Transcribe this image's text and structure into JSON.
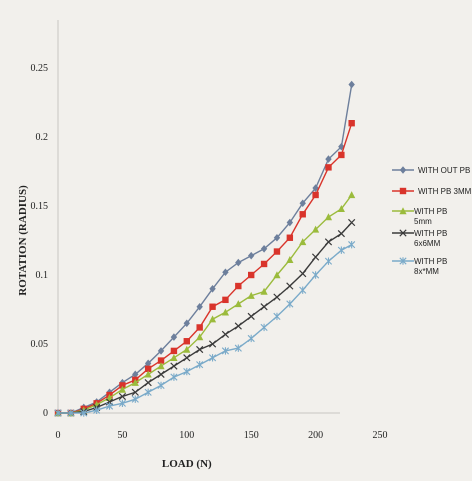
{
  "chart_data": {
    "type": "line",
    "title": "",
    "xlabel": "LOAD (N)",
    "ylabel": "ROTATION (RADIUS)",
    "xlim": [
      0,
      250
    ],
    "ylim": [
      0,
      0.25
    ],
    "x_ticks": [
      "0",
      "50",
      "100",
      "150",
      "200",
      "250"
    ],
    "y_ticks": [
      "0",
      "0.05",
      "0.1",
      "0.15",
      "0.2",
      "0.25"
    ],
    "grid": false,
    "legend_position": "right",
    "series": [
      {
        "name": "WITH OUT PB",
        "color": "#6d7f9c",
        "marker": "diamond",
        "x": [
          0,
          10,
          20,
          30,
          40,
          50,
          60,
          70,
          80,
          90,
          100,
          110,
          120,
          130,
          140,
          150,
          160,
          170,
          180,
          190,
          200,
          210,
          220,
          228
        ],
        "y": [
          0,
          0,
          0.004,
          0.008,
          0.015,
          0.022,
          0.028,
          0.036,
          0.045,
          0.055,
          0.065,
          0.077,
          0.09,
          0.102,
          0.109,
          0.114,
          0.119,
          0.127,
          0.138,
          0.152,
          0.163,
          0.184,
          0.193,
          0.238
        ]
      },
      {
        "name": "WITH PB 3MM",
        "color": "#d9342b",
        "marker": "square",
        "x": [
          0,
          10,
          20,
          30,
          40,
          50,
          60,
          70,
          80,
          90,
          100,
          110,
          120,
          130,
          140,
          150,
          160,
          170,
          180,
          190,
          200,
          210,
          220,
          228
        ],
        "y": [
          0,
          0,
          0.003,
          0.007,
          0.013,
          0.02,
          0.024,
          0.032,
          0.038,
          0.045,
          0.052,
          0.062,
          0.077,
          0.082,
          0.092,
          0.1,
          0.108,
          0.117,
          0.127,
          0.144,
          0.158,
          0.178,
          0.187,
          0.21
        ]
      },
      {
        "name": "WITH  PB 5mm",
        "color": "#9bbb3c",
        "marker": "triangle",
        "x": [
          0,
          10,
          20,
          30,
          40,
          50,
          60,
          70,
          80,
          90,
          100,
          110,
          120,
          130,
          140,
          150,
          160,
          170,
          180,
          190,
          200,
          210,
          220,
          228
        ],
        "y": [
          0,
          0,
          0.002,
          0.006,
          0.011,
          0.017,
          0.022,
          0.028,
          0.034,
          0.04,
          0.046,
          0.055,
          0.068,
          0.073,
          0.079,
          0.085,
          0.088,
          0.1,
          0.111,
          0.124,
          0.133,
          0.142,
          0.148,
          0.158
        ]
      },
      {
        "name": "WITH PB 6x6MM",
        "color": "#3a3a3a",
        "marker": "x",
        "x": [
          0,
          10,
          20,
          30,
          40,
          50,
          60,
          70,
          80,
          90,
          100,
          110,
          120,
          130,
          140,
          150,
          160,
          170,
          180,
          190,
          200,
          210,
          220,
          228
        ],
        "y": [
          0,
          0,
          0.001,
          0.004,
          0.008,
          0.012,
          0.015,
          0.022,
          0.028,
          0.034,
          0.04,
          0.046,
          0.05,
          0.057,
          0.063,
          0.07,
          0.077,
          0.084,
          0.092,
          0.101,
          0.113,
          0.124,
          0.13,
          0.138
        ]
      },
      {
        "name": "WITH PB 8x*MM",
        "color": "#7aaac9",
        "marker": "star",
        "x": [
          0,
          10,
          20,
          30,
          40,
          50,
          60,
          70,
          80,
          90,
          100,
          110,
          120,
          130,
          140,
          150,
          160,
          170,
          180,
          190,
          200,
          210,
          220,
          228
        ],
        "y": [
          0,
          0,
          0,
          0.002,
          0.005,
          0.007,
          0.01,
          0.015,
          0.02,
          0.026,
          0.03,
          0.035,
          0.04,
          0.045,
          0.047,
          0.054,
          0.062,
          0.07,
          0.079,
          0.089,
          0.1,
          0.11,
          0.118,
          0.122
        ]
      }
    ]
  }
}
